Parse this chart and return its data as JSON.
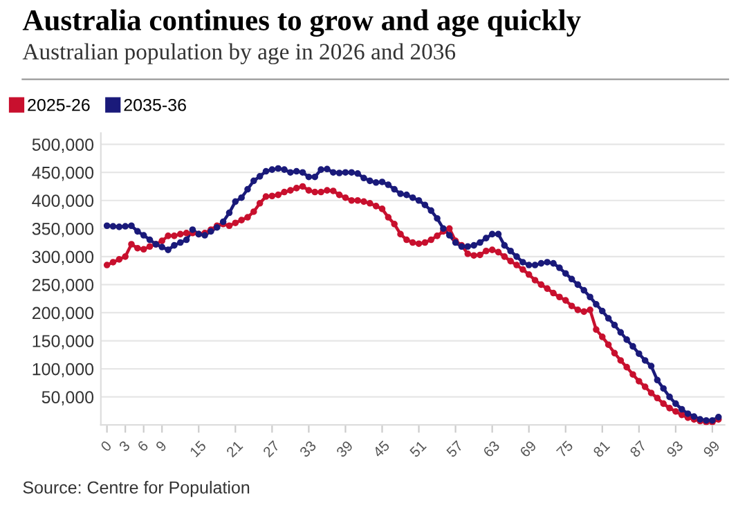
{
  "chart_data": {
    "type": "line",
    "title": "Australia continues to grow and age quickly",
    "subtitle": "Australian population by age in 2026 and 2036",
    "x": [
      0,
      1,
      2,
      3,
      4,
      5,
      6,
      7,
      8,
      9,
      10,
      11,
      12,
      13,
      14,
      15,
      16,
      17,
      18,
      19,
      20,
      21,
      22,
      23,
      24,
      25,
      26,
      27,
      28,
      29,
      30,
      31,
      32,
      33,
      34,
      35,
      36,
      37,
      38,
      39,
      40,
      41,
      42,
      43,
      44,
      45,
      46,
      47,
      48,
      49,
      50,
      51,
      52,
      53,
      54,
      55,
      56,
      57,
      58,
      59,
      60,
      61,
      62,
      63,
      64,
      65,
      66,
      67,
      68,
      69,
      70,
      71,
      72,
      73,
      74,
      75,
      76,
      77,
      78,
      79,
      80,
      81,
      82,
      83,
      84,
      85,
      86,
      87,
      88,
      89,
      90,
      91,
      92,
      93,
      94,
      95,
      96,
      97,
      98,
      99,
      100
    ],
    "series": [
      {
        "name": "2025-26",
        "color": "#c8102e",
        "values": [
          285000,
          290000,
          295000,
          300000,
          322000,
          315000,
          313000,
          318000,
          322000,
          328000,
          337000,
          337000,
          340000,
          342000,
          342000,
          340000,
          342000,
          348000,
          355000,
          358000,
          355000,
          360000,
          365000,
          370000,
          380000,
          395000,
          407000,
          408000,
          410000,
          415000,
          418000,
          422000,
          425000,
          418000,
          415000,
          415000,
          418000,
          417000,
          410000,
          405000,
          400000,
          400000,
          398000,
          395000,
          390000,
          385000,
          370000,
          358000,
          340000,
          330000,
          325000,
          323000,
          325000,
          330000,
          337000,
          345000,
          350000,
          328000,
          320000,
          305000,
          302000,
          303000,
          310000,
          312000,
          308000,
          300000,
          292000,
          285000,
          277000,
          268000,
          258000,
          250000,
          243000,
          235000,
          228000,
          222000,
          212000,
          205000,
          202000,
          205000,
          170000,
          157000,
          143000,
          128000,
          115000,
          103000,
          90000,
          78000,
          68000,
          57000,
          48000,
          38000,
          30000,
          24000,
          18000,
          13000,
          10000,
          7000,
          5000,
          5000,
          10000
        ]
      },
      {
        "name": "2035-36",
        "color": "#1a1a7a",
        "values": [
          355000,
          354000,
          353000,
          354000,
          355000,
          345000,
          338000,
          330000,
          322000,
          317000,
          312000,
          320000,
          325000,
          330000,
          348000,
          340000,
          338000,
          345000,
          352000,
          362000,
          378000,
          398000,
          405000,
          420000,
          435000,
          443000,
          452000,
          455000,
          457000,
          455000,
          450000,
          452000,
          450000,
          442000,
          442000,
          455000,
          456000,
          450000,
          449000,
          450000,
          450000,
          448000,
          440000,
          435000,
          432000,
          433000,
          428000,
          420000,
          412000,
          410000,
          405000,
          400000,
          392000,
          382000,
          368000,
          350000,
          338000,
          325000,
          318000,
          318000,
          320000,
          325000,
          333000,
          340000,
          340000,
          320000,
          310000,
          300000,
          290000,
          285000,
          285000,
          288000,
          290000,
          288000,
          280000,
          270000,
          260000,
          250000,
          240000,
          228000,
          215000,
          203000,
          190000,
          178000,
          165000,
          152000,
          140000,
          127000,
          115000,
          105000,
          80000,
          65000,
          50000,
          38000,
          28000,
          20000,
          15000,
          10000,
          8000,
          8000,
          14000
        ]
      }
    ],
    "xlim": [
      -1,
      101
    ],
    "xticks": [
      0,
      3,
      6,
      9,
      15,
      21,
      27,
      33,
      39,
      45,
      51,
      57,
      63,
      69,
      75,
      81,
      87,
      93,
      99
    ],
    "ylim": [
      0,
      520000
    ],
    "yticks": [
      {
        "value": 50000,
        "label": "50,000"
      },
      {
        "value": 100000,
        "label": "100,000"
      },
      {
        "value": 150000,
        "label": "150,000"
      },
      {
        "value": 200000,
        "label": "200,000"
      },
      {
        "value": 250000,
        "label": "250,000"
      },
      {
        "value": 300000,
        "label": "300,000"
      },
      {
        "value": 350000,
        "label": "350,000"
      },
      {
        "value": 400000,
        "label": "400,000"
      },
      {
        "value": 450000,
        "label": "450,000"
      },
      {
        "value": 500000,
        "label": "500,000"
      }
    ],
    "grid": "y",
    "legend": "top left",
    "marker": "circle",
    "line_style": "solid",
    "annotations": [
      "Source: Centre for Population"
    ]
  }
}
